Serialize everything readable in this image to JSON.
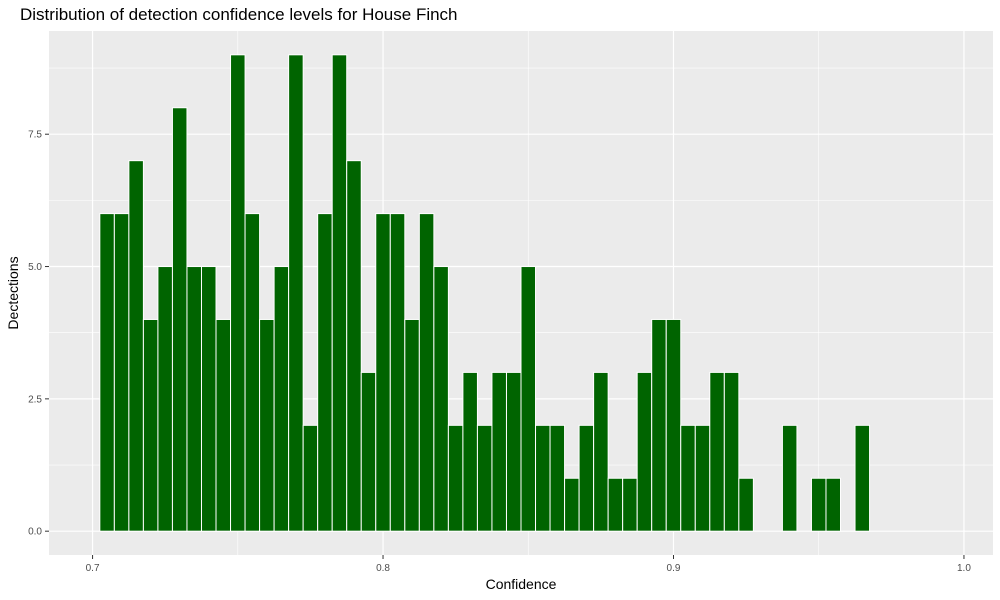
{
  "chart_data": {
    "type": "bar",
    "title": "Distribution of detection confidence levels for House Finch",
    "xlabel": "Confidence",
    "ylabel": "Dectections",
    "xlim": [
      0.685,
      1.01
    ],
    "ylim": [
      -0.45,
      9.45
    ],
    "bin_width": 0.005,
    "x_ticks": [
      0.7,
      0.8,
      0.9,
      1.0
    ],
    "x_tick_labels": [
      "0.7",
      "0.8",
      "0.9",
      "1.0"
    ],
    "y_ticks": [
      0,
      2.5,
      5,
      7.5
    ],
    "y_tick_labels": [
      "0.0",
      "2.5",
      "5.0",
      "7.5"
    ],
    "grid": true,
    "legend": "none",
    "colors": {
      "bar_fill": "#006400",
      "bar_edge": "#ffffff",
      "panel_bg": "#ebebeb",
      "grid": "#ffffff"
    },
    "bins": [
      {
        "x": 0.705,
        "count": 6
      },
      {
        "x": 0.71,
        "count": 6
      },
      {
        "x": 0.715,
        "count": 7
      },
      {
        "x": 0.72,
        "count": 4
      },
      {
        "x": 0.725,
        "count": 5
      },
      {
        "x": 0.73,
        "count": 8
      },
      {
        "x": 0.735,
        "count": 5
      },
      {
        "x": 0.74,
        "count": 5
      },
      {
        "x": 0.745,
        "count": 4
      },
      {
        "x": 0.75,
        "count": 9
      },
      {
        "x": 0.755,
        "count": 6
      },
      {
        "x": 0.76,
        "count": 4
      },
      {
        "x": 0.765,
        "count": 5
      },
      {
        "x": 0.77,
        "count": 9
      },
      {
        "x": 0.775,
        "count": 2
      },
      {
        "x": 0.78,
        "count": 6
      },
      {
        "x": 0.785,
        "count": 9
      },
      {
        "x": 0.79,
        "count": 7
      },
      {
        "x": 0.795,
        "count": 3
      },
      {
        "x": 0.8,
        "count": 6
      },
      {
        "x": 0.805,
        "count": 6
      },
      {
        "x": 0.81,
        "count": 4
      },
      {
        "x": 0.815,
        "count": 6
      },
      {
        "x": 0.82,
        "count": 5
      },
      {
        "x": 0.825,
        "count": 2
      },
      {
        "x": 0.83,
        "count": 3
      },
      {
        "x": 0.835,
        "count": 2
      },
      {
        "x": 0.84,
        "count": 3
      },
      {
        "x": 0.845,
        "count": 3
      },
      {
        "x": 0.85,
        "count": 5
      },
      {
        "x": 0.855,
        "count": 2
      },
      {
        "x": 0.86,
        "count": 2
      },
      {
        "x": 0.865,
        "count": 1
      },
      {
        "x": 0.87,
        "count": 2
      },
      {
        "x": 0.875,
        "count": 3
      },
      {
        "x": 0.88,
        "count": 1
      },
      {
        "x": 0.885,
        "count": 1
      },
      {
        "x": 0.89,
        "count": 3
      },
      {
        "x": 0.895,
        "count": 4
      },
      {
        "x": 0.9,
        "count": 4
      },
      {
        "x": 0.905,
        "count": 2
      },
      {
        "x": 0.91,
        "count": 2
      },
      {
        "x": 0.915,
        "count": 3
      },
      {
        "x": 0.92,
        "count": 3
      },
      {
        "x": 0.925,
        "count": 1
      },
      {
        "x": 0.94,
        "count": 2
      },
      {
        "x": 0.95,
        "count": 1
      },
      {
        "x": 0.955,
        "count": 1
      },
      {
        "x": 0.965,
        "count": 2
      }
    ]
  }
}
